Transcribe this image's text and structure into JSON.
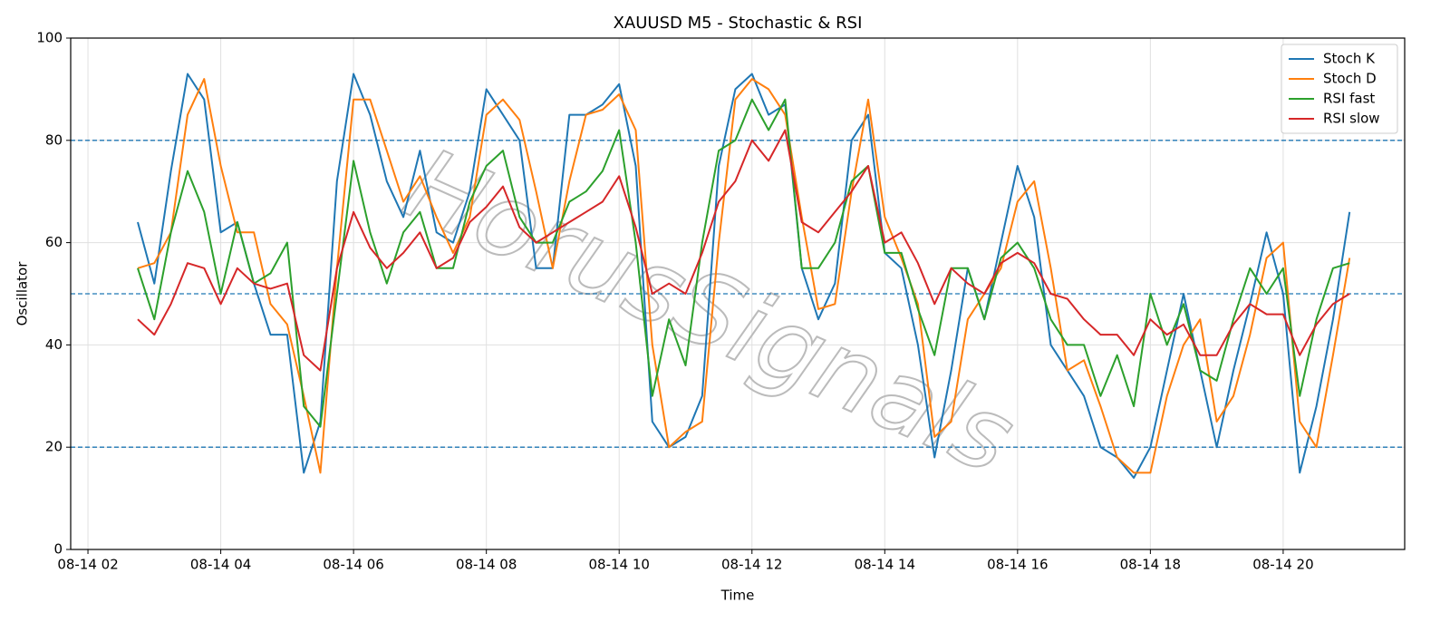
{
  "chart_data": {
    "type": "line",
    "title": "XAUUSD M5 - Stochastic & RSI",
    "x_label": "Time",
    "y_label": "Oscillator",
    "watermark": "HorusSignals",
    "xlim": [
      1.74,
      21.83
    ],
    "xticks": [
      {
        "value": 2,
        "label": "08-14 02"
      },
      {
        "value": 4,
        "label": "08-14 04"
      },
      {
        "value": 6,
        "label": "08-14 06"
      },
      {
        "value": 8,
        "label": "08-14 08"
      },
      {
        "value": 10,
        "label": "08-14 10"
      },
      {
        "value": 12,
        "label": "08-14 12"
      },
      {
        "value": 14,
        "label": "08-14 14"
      },
      {
        "value": 16,
        "label": "08-14 16"
      },
      {
        "value": 18,
        "label": "08-14 18"
      },
      {
        "value": 20,
        "label": "08-14 20"
      }
    ],
    "ylim": [
      0,
      100
    ],
    "yticks": [
      0,
      20,
      40,
      60,
      80,
      100
    ],
    "grid": true,
    "legend": "upper right",
    "hlines": [
      20,
      50,
      80
    ],
    "hline_color": "#1f77b4",
    "x": [
      2.75,
      3,
      3.25,
      3.5,
      3.75,
      4,
      4.25,
      4.5,
      4.75,
      5,
      5.25,
      5.5,
      5.75,
      6,
      6.25,
      6.5,
      6.75,
      7,
      7.25,
      7.5,
      7.75,
      8,
      8.25,
      8.5,
      8.75,
      9,
      9.25,
      9.5,
      9.75,
      10,
      10.25,
      10.5,
      10.75,
      11,
      11.25,
      11.5,
      11.75,
      12,
      12.25,
      12.5,
      12.75,
      13,
      13.25,
      13.5,
      13.75,
      14,
      14.25,
      14.5,
      14.75,
      15,
      15.25,
      15.5,
      15.75,
      16,
      16.25,
      16.5,
      16.75,
      17,
      17.25,
      17.5,
      17.75,
      18,
      18.25,
      18.5,
      18.75,
      19,
      19.25,
      19.5,
      19.75,
      20,
      20.25,
      20.5,
      20.75,
      21
    ],
    "series": [
      {
        "name": "Stoch K",
        "color": "#1f77b4",
        "values": [
          64,
          52,
          74,
          93,
          88,
          62,
          64,
          52,
          42,
          42,
          15,
          25,
          72,
          93,
          85,
          72,
          65,
          78,
          62,
          60,
          70,
          90,
          85,
          80,
          55,
          55,
          85,
          85,
          87,
          91,
          75,
          25,
          20,
          22,
          30,
          75,
          90,
          93,
          85,
          87,
          55,
          45,
          52,
          80,
          85,
          58,
          55,
          40,
          18,
          35,
          55,
          45,
          60,
          75,
          65,
          40,
          35,
          30,
          20,
          18,
          14,
          20,
          35,
          50,
          35,
          20,
          35,
          48,
          62,
          50,
          15,
          28,
          45,
          66
        ]
      },
      {
        "name": "Stoch D",
        "color": "#ff7f0e",
        "values": [
          55,
          56,
          62,
          85,
          92,
          75,
          62,
          62,
          48,
          44,
          30,
          15,
          55,
          88,
          88,
          78,
          68,
          73,
          65,
          58,
          65,
          85,
          88,
          84,
          70,
          55,
          72,
          85,
          86,
          89,
          82,
          40,
          20,
          23,
          25,
          60,
          88,
          92,
          90,
          85,
          65,
          47,
          48,
          70,
          88,
          65,
          57,
          48,
          22,
          25,
          45,
          50,
          55,
          68,
          72,
          55,
          35,
          37,
          28,
          18,
          15,
          15,
          30,
          40,
          45,
          25,
          30,
          42,
          57,
          60,
          25,
          20,
          38,
          57
        ]
      },
      {
        "name": "RSI fast",
        "color": "#2ca02c",
        "values": [
          55,
          45,
          62,
          74,
          66,
          50,
          64,
          52,
          54,
          60,
          28,
          24,
          50,
          76,
          62,
          52,
          62,
          66,
          55,
          55,
          68,
          75,
          78,
          65,
          60,
          60,
          68,
          70,
          74,
          82,
          60,
          30,
          45,
          36,
          60,
          78,
          80,
          88,
          82,
          88,
          55,
          55,
          60,
          72,
          75,
          58,
          58,
          47,
          38,
          55,
          55,
          45,
          57,
          60,
          55,
          45,
          40,
          40,
          30,
          38,
          28,
          50,
          40,
          48,
          35,
          33,
          45,
          55,
          50,
          55,
          30,
          45,
          55,
          56
        ]
      },
      {
        "name": "RSI slow",
        "color": "#d62728",
        "values": [
          45,
          42,
          48,
          56,
          55,
          48,
          55,
          52,
          51,
          52,
          38,
          35,
          55,
          66,
          59,
          55,
          58,
          62,
          55,
          57,
          64,
          67,
          71,
          63,
          60,
          62,
          64,
          66,
          68,
          73,
          63,
          50,
          52,
          50,
          58,
          68,
          72,
          80,
          76,
          82,
          64,
          62,
          66,
          70,
          75,
          60,
          62,
          56,
          48,
          55,
          52,
          50,
          56,
          58,
          56,
          50,
          49,
          45,
          42,
          42,
          38,
          45,
          42,
          44,
          38,
          38,
          44,
          48,
          46,
          46,
          38,
          44,
          48,
          50
        ]
      }
    ]
  }
}
